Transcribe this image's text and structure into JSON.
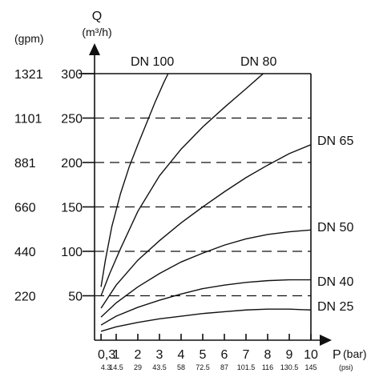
{
  "chart_data": {
    "type": "line",
    "xlabel": "P",
    "xunit": "(bar)",
    "xlabel_secondary_unit": "(psi)",
    "ylabel": "Q",
    "yunit": "(m³/h)",
    "ylabel_secondary_unit": "(gpm)",
    "xlim": [
      0,
      10
    ],
    "ylim": [
      0,
      300
    ],
    "x_ticks": [
      {
        "value": 0.3,
        "label": "0,3"
      },
      {
        "value": 1,
        "label": "1"
      },
      {
        "value": 2,
        "label": "2"
      },
      {
        "value": 3,
        "label": "3"
      },
      {
        "value": 4,
        "label": "4"
      },
      {
        "value": 5,
        "label": "5"
      },
      {
        "value": 6,
        "label": "6"
      },
      {
        "value": 7,
        "label": "7"
      },
      {
        "value": 8,
        "label": "8"
      },
      {
        "value": 9,
        "label": "9"
      },
      {
        "value": 10,
        "label": "10"
      }
    ],
    "x_ticks_secondary": [
      {
        "value": 0.3,
        "label": "4.3"
      },
      {
        "value": 1,
        "label": "14.5"
      },
      {
        "value": 2,
        "label": "29"
      },
      {
        "value": 3,
        "label": "43.5"
      },
      {
        "value": 4,
        "label": "58"
      },
      {
        "value": 5,
        "label": "72.5"
      },
      {
        "value": 6,
        "label": "87"
      },
      {
        "value": 7,
        "label": "101.5"
      },
      {
        "value": 8,
        "label": "116"
      },
      {
        "value": 9,
        "label": "130.5"
      },
      {
        "value": 10,
        "label": "145"
      }
    ],
    "y_ticks": [
      {
        "value": 50,
        "label": "50"
      },
      {
        "value": 100,
        "label": "100"
      },
      {
        "value": 150,
        "label": "150"
      },
      {
        "value": 200,
        "label": "200"
      },
      {
        "value": 250,
        "label": "250"
      },
      {
        "value": 300,
        "label": "300"
      }
    ],
    "y_ticks_secondary": [
      {
        "value": 50,
        "label": "220"
      },
      {
        "value": 100,
        "label": "440"
      },
      {
        "value": 150,
        "label": "660"
      },
      {
        "value": 200,
        "label": "881"
      },
      {
        "value": 250,
        "label": "1101"
      },
      {
        "value": 300,
        "label": "1321"
      }
    ],
    "grid_dashed_y": [
      50,
      100,
      150,
      200,
      250
    ],
    "series": [
      {
        "name": "DN 100",
        "label_position": "top",
        "points": [
          [
            0.3,
            60
          ],
          [
            0.5,
            90
          ],
          [
            0.8,
            128
          ],
          [
            1.2,
            165
          ],
          [
            1.6,
            195
          ],
          [
            2.0,
            220
          ],
          [
            2.4,
            244
          ],
          [
            2.8,
            268
          ],
          [
            3.2,
            290
          ],
          [
            3.4,
            300
          ]
        ]
      },
      {
        "name": "DN 80",
        "label_position": "top",
        "points": [
          [
            0.3,
            50
          ],
          [
            0.7,
            75
          ],
          [
            1.2,
            103
          ],
          [
            2.0,
            145
          ],
          [
            3.0,
            185
          ],
          [
            4.0,
            215
          ],
          [
            5.0,
            240
          ],
          [
            6.0,
            262
          ],
          [
            7.0,
            283
          ],
          [
            7.7,
            298
          ],
          [
            7.8,
            300
          ]
        ]
      },
      {
        "name": "DN 65",
        "label_position": "right",
        "points": [
          [
            0.3,
            36
          ],
          [
            1.0,
            62
          ],
          [
            2.0,
            90
          ],
          [
            3.0,
            112
          ],
          [
            4.0,
            132
          ],
          [
            5.0,
            150
          ],
          [
            6.0,
            167
          ],
          [
            7.0,
            183
          ],
          [
            8.0,
            197
          ],
          [
            9.0,
            210
          ],
          [
            10.0,
            220
          ]
        ]
      },
      {
        "name": "DN 50",
        "label_position": "right",
        "points": [
          [
            0.3,
            26
          ],
          [
            1.0,
            42
          ],
          [
            2.0,
            60
          ],
          [
            3.0,
            75
          ],
          [
            4.0,
            88
          ],
          [
            5.0,
            98
          ],
          [
            6.0,
            107
          ],
          [
            7.0,
            114
          ],
          [
            8.0,
            119
          ],
          [
            9.0,
            122
          ],
          [
            10.0,
            124
          ]
        ]
      },
      {
        "name": "DN 40",
        "label_position": "right",
        "points": [
          [
            0.3,
            17
          ],
          [
            1.0,
            27
          ],
          [
            2.0,
            37
          ],
          [
            3.0,
            45
          ],
          [
            4.0,
            52
          ],
          [
            5.0,
            58
          ],
          [
            6.0,
            62
          ],
          [
            7.0,
            65
          ],
          [
            8.0,
            67
          ],
          [
            9.0,
            68
          ],
          [
            10.0,
            68
          ]
        ]
      },
      {
        "name": "DN 25",
        "label_position": "right",
        "points": [
          [
            0.3,
            10
          ],
          [
            1.0,
            15
          ],
          [
            2.0,
            20
          ],
          [
            3.0,
            24
          ],
          [
            4.0,
            27
          ],
          [
            5.0,
            30
          ],
          [
            6.0,
            32
          ],
          [
            7.0,
            34
          ],
          [
            8.0,
            35
          ],
          [
            9.0,
            35
          ],
          [
            10.0,
            34
          ]
        ]
      }
    ]
  }
}
